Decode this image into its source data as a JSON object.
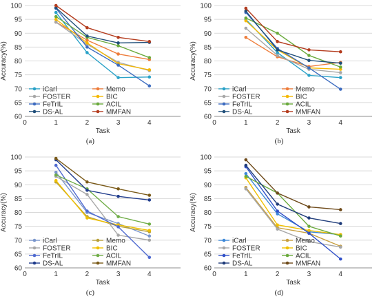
{
  "chart_data": [
    {
      "type": "line",
      "caption": "(a)",
      "xlabel": "Task",
      "ylabel": "Accuracy(%)",
      "x": [
        1,
        2,
        3,
        4
      ],
      "xlim": [
        0,
        5
      ],
      "ylim": [
        60,
        100
      ],
      "yticks": [
        60,
        65,
        70,
        75,
        80,
        85,
        90,
        95,
        100
      ],
      "xticks": [
        0,
        1,
        2,
        3,
        4
      ],
      "grid": "horizontal",
      "legend_position": "lower-left",
      "series": [
        {
          "name": "iCarl",
          "color": "#2aa2c8",
          "values": [
            97.5,
            83.0,
            74.0,
            74.2
          ]
        },
        {
          "name": "Memo",
          "color": "#ee7d3b",
          "values": [
            94.0,
            87.5,
            82.5,
            80.5
          ]
        },
        {
          "name": "FOSTER",
          "color": "#a7a7a7",
          "values": [
            94.0,
            86.0,
            79.5,
            76.5
          ]
        },
        {
          "name": "BIC",
          "color": "#f5b800",
          "values": [
            95.0,
            86.5,
            79.0,
            76.8
          ]
        },
        {
          "name": "FeTrIL",
          "color": "#3d6cc0",
          "values": [
            99.0,
            85.0,
            78.5,
            71.0
          ]
        },
        {
          "name": "ACIL",
          "color": "#6aaa3c",
          "values": [
            96.0,
            88.5,
            85.5,
            81.2
          ]
        },
        {
          "name": "DS-AL",
          "color": "#1f4e79",
          "values": [
            99.2,
            89.0,
            86.5,
            86.7
          ]
        },
        {
          "name": "MMFAN",
          "color": "#b43c1e",
          "values": [
            100.0,
            92.0,
            88.5,
            87.0
          ]
        }
      ]
    },
    {
      "type": "line",
      "caption": "(b)",
      "xlabel": "Task",
      "ylabel": "Accuracy(%)",
      "x": [
        1,
        2,
        3,
        4
      ],
      "xlim": [
        0,
        5
      ],
      "ylim": [
        60,
        100
      ],
      "yticks": [
        60,
        65,
        70,
        75,
        80,
        85,
        90,
        95,
        100
      ],
      "xticks": [
        0,
        1,
        2,
        3,
        4
      ],
      "grid": "horizontal",
      "legend_position": "lower-left",
      "series": [
        {
          "name": "iCarl",
          "color": "#2aa2c8",
          "values": [
            95.0,
            83.0,
            74.8,
            74.0
          ]
        },
        {
          "name": "Memo",
          "color": "#ee7d3b",
          "values": [
            88.5,
            81.5,
            78.0,
            79.5
          ]
        },
        {
          "name": "FOSTER",
          "color": "#a7a7a7",
          "values": [
            91.8,
            82.0,
            77.0,
            75.8
          ]
        },
        {
          "name": "BIC",
          "color": "#f5b800",
          "values": [
            94.5,
            84.0,
            77.5,
            77.0
          ]
        },
        {
          "name": "FeTrIL",
          "color": "#3d6cc0",
          "values": [
            97.5,
            84.5,
            77.5,
            69.8
          ]
        },
        {
          "name": "ACIL",
          "color": "#6aaa3c",
          "values": [
            95.5,
            90.0,
            82.0,
            77.8
          ]
        },
        {
          "name": "DS-AL",
          "color": "#1f4e79",
          "values": [
            98.0,
            84.0,
            80.2,
            79.2
          ]
        },
        {
          "name": "MMFAN",
          "color": "#b43c1e",
          "values": [
            99.0,
            87.0,
            84.0,
            83.3
          ]
        }
      ]
    },
    {
      "type": "line",
      "caption": "(c)",
      "xlabel": "Task",
      "ylabel": "Accuracy(%)",
      "x": [
        1,
        2,
        3,
        4
      ],
      "xlim": [
        0,
        5
      ],
      "ylim": [
        60,
        100
      ],
      "yticks": [
        60,
        65,
        70,
        75,
        80,
        85,
        90,
        95,
        100
      ],
      "xticks": [
        0,
        1,
        2,
        3,
        4
      ],
      "grid": "horizontal",
      "legend_position": "lower-left",
      "series": [
        {
          "name": "iCarl",
          "color": "#7a96cc",
          "values": [
            94.5,
            80.0,
            76.0,
            71.5
          ]
        },
        {
          "name": "Memo",
          "color": "#b8a03a",
          "values": [
            91.0,
            78.5,
            75.0,
            73.0
          ]
        },
        {
          "name": "FOSTER",
          "color": "#a7a7a7",
          "values": [
            93.0,
            86.5,
            71.8,
            70.0
          ]
        },
        {
          "name": "BIC",
          "color": "#f0c000",
          "values": [
            91.5,
            78.0,
            75.5,
            73.5
          ]
        },
        {
          "name": "FeTrIL",
          "color": "#4f6ad0",
          "values": [
            97.0,
            80.5,
            74.8,
            63.8
          ]
        },
        {
          "name": "ACIL",
          "color": "#70ad47",
          "values": [
            93.5,
            88.5,
            78.5,
            75.8
          ]
        },
        {
          "name": "DS-AL",
          "color": "#203c8c",
          "values": [
            99.0,
            88.0,
            85.8,
            84.5
          ]
        },
        {
          "name": "MMFAN",
          "color": "#7a5a18",
          "values": [
            99.5,
            91.0,
            88.5,
            86.2
          ]
        }
      ]
    },
    {
      "type": "line",
      "caption": "(d)",
      "xlabel": "Task",
      "ylabel": "Accuracy(%)",
      "x": [
        1,
        2,
        3,
        4
      ],
      "xlim": [
        0,
        5
      ],
      "ylim": [
        60,
        100
      ],
      "yticks": [
        60,
        65,
        70,
        75,
        80,
        85,
        90,
        95,
        100
      ],
      "xticks": [
        0,
        1,
        2,
        3,
        4
      ],
      "grid": "horizontal",
      "legend_position": "lower-left",
      "series": [
        {
          "name": "iCarl",
          "color": "#3d88d8",
          "values": [
            94.0,
            79.5,
            73.0,
            72.0
          ]
        },
        {
          "name": "Memo",
          "color": "#c8a040",
          "values": [
            89.0,
            74.5,
            72.5,
            67.8
          ]
        },
        {
          "name": "FOSTER",
          "color": "#a7a7a7",
          "values": [
            88.5,
            74.0,
            69.5,
            67.5
          ]
        },
        {
          "name": "BIC",
          "color": "#f0c000",
          "values": [
            92.5,
            75.5,
            73.5,
            72.0
          ]
        },
        {
          "name": "FeTrIL",
          "color": "#3050c8",
          "values": [
            96.5,
            80.5,
            72.5,
            63.2
          ]
        },
        {
          "name": "ACIL",
          "color": "#6aaa3c",
          "values": [
            93.0,
            87.0,
            75.0,
            71.5
          ]
        },
        {
          "name": "DS-AL",
          "color": "#1f3c7a",
          "values": [
            97.0,
            83.0,
            78.0,
            76.0
          ]
        },
        {
          "name": "MMFAN",
          "color": "#6e4a1a",
          "values": [
            99.0,
            87.0,
            82.0,
            81.0
          ]
        }
      ]
    }
  ]
}
